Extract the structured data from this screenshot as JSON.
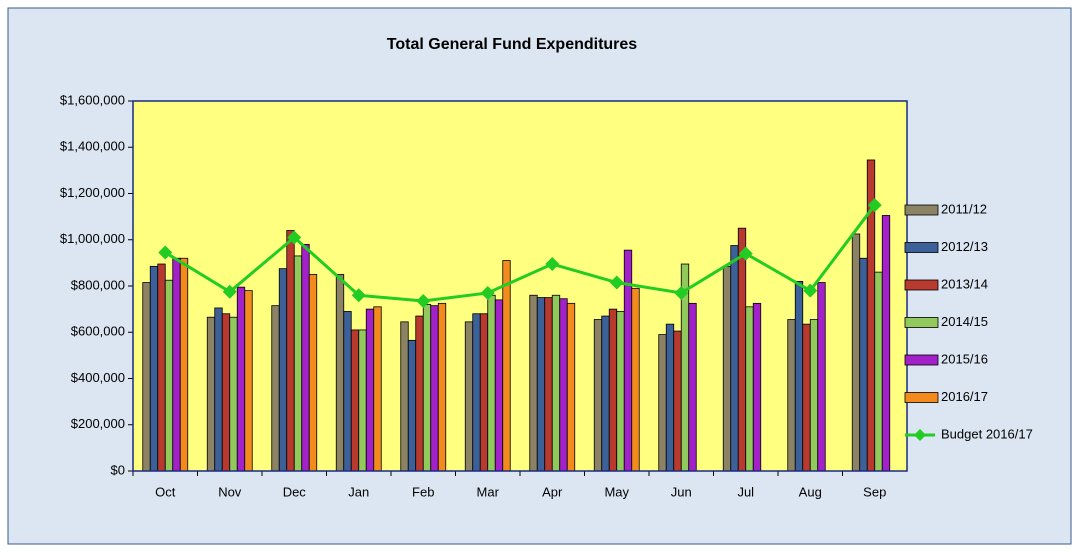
{
  "chart_data": {
    "type": "bar",
    "title": "Total General Fund Expenditures",
    "categories": [
      "Oct",
      "Nov",
      "Dec",
      "Jan",
      "Feb",
      "Mar",
      "Apr",
      "May",
      "Jun",
      "Jul",
      "Aug",
      "Sep"
    ],
    "series": [
      {
        "name": "2011/12",
        "color": "#8c8264",
        "values": [
          815000,
          665000,
          715000,
          850000,
          645000,
          645000,
          760000,
          655000,
          590000,
          885000,
          655000,
          1025000
        ]
      },
      {
        "name": "2012/13",
        "color": "#3c6098",
        "values": [
          885000,
          705000,
          875000,
          690000,
          565000,
          680000,
          750000,
          670000,
          635000,
          975000,
          820000,
          920000
        ]
      },
      {
        "name": "2013/14",
        "color": "#b83a2e",
        "values": [
          895000,
          680000,
          1040000,
          610000,
          670000,
          680000,
          750000,
          700000,
          605000,
          1050000,
          635000,
          1345000
        ]
      },
      {
        "name": "2014/15",
        "color": "#92c95c",
        "values": [
          825000,
          665000,
          930000,
          610000,
          720000,
          760000,
          760000,
          690000,
          895000,
          710000,
          655000,
          860000
        ]
      },
      {
        "name": "2015/16",
        "color": "#a221c9",
        "values": [
          920000,
          795000,
          980000,
          700000,
          715000,
          740000,
          745000,
          955000,
          725000,
          725000,
          815000,
          1105000
        ]
      },
      {
        "name": "2016/17",
        "color": "#f28a1e",
        "values": [
          920000,
          780000,
          850000,
          710000,
          725000,
          910000,
          725000,
          790000,
          null,
          null,
          null,
          null
        ]
      },
      {
        "name": "Budget 2016/17",
        "color": "#22cc22",
        "type": "line",
        "values": [
          945000,
          775000,
          1010000,
          760000,
          735000,
          770000,
          895000,
          815000,
          770000,
          940000,
          780000,
          1150000
        ]
      }
    ],
    "ylim": [
      0,
      1600000
    ],
    "yticks": [
      {
        "value": 0,
        "label": "$0"
      },
      {
        "value": 200000,
        "label": "$200,000"
      },
      {
        "value": 400000,
        "label": "$400,000"
      },
      {
        "value": 600000,
        "label": "$600,000"
      },
      {
        "value": 800000,
        "label": "$800,000"
      },
      {
        "value": 1000000,
        "label": "$1,000,000"
      },
      {
        "value": 1200000,
        "label": "$1,200,000"
      },
      {
        "value": 1400000,
        "label": "$1,400,000"
      },
      {
        "value": 1600000,
        "label": "$1,600,000"
      }
    ],
    "grid": false,
    "legend": "right",
    "plot_background": "#ffff80"
  }
}
